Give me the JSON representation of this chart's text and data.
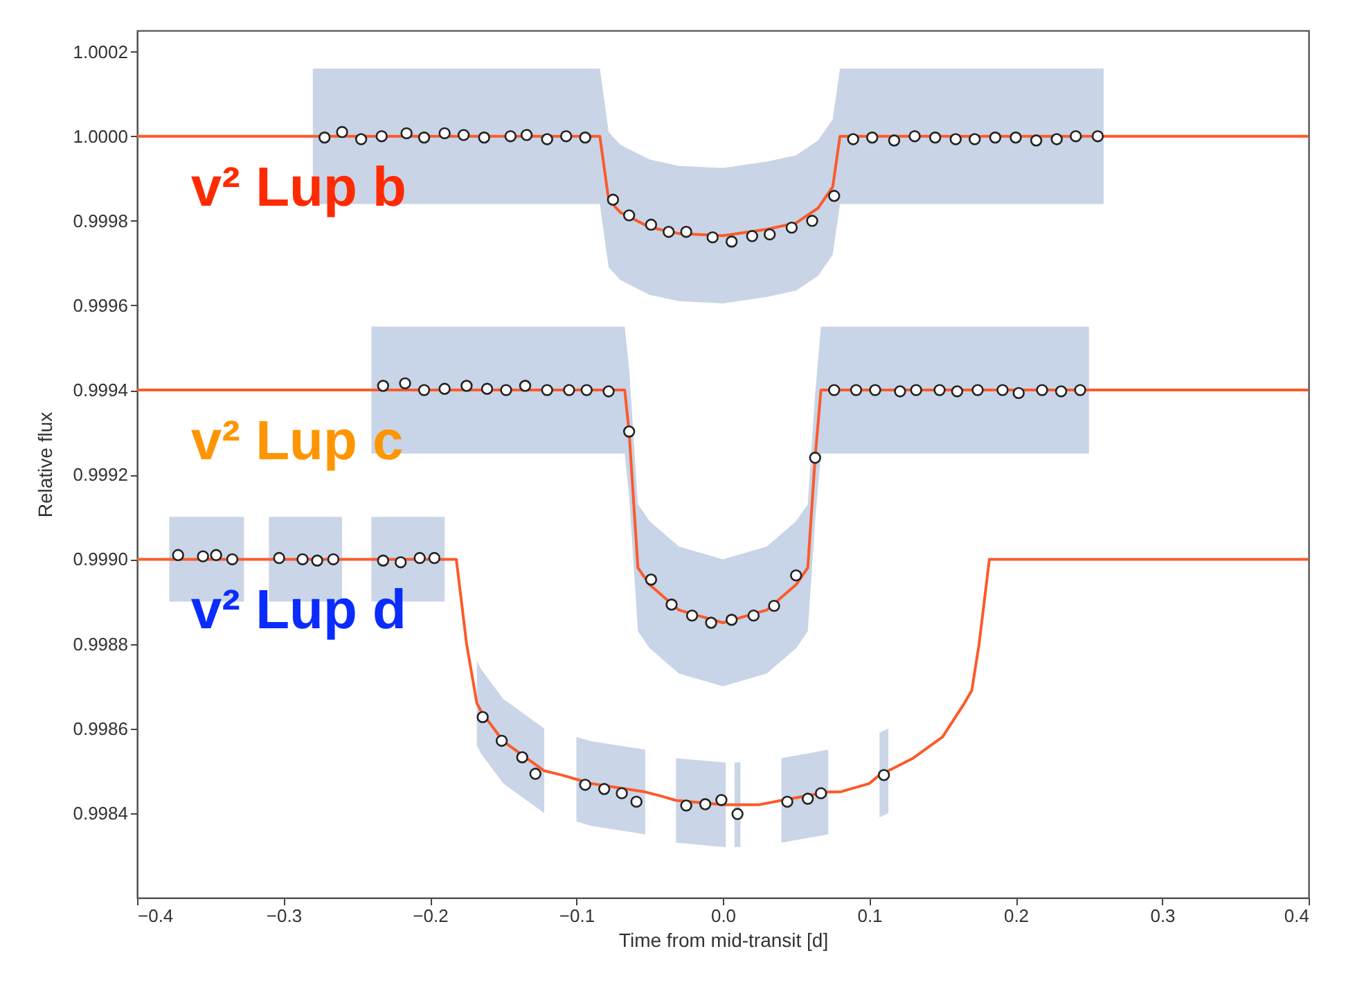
{
  "chart_data": {
    "type": "line",
    "xlabel": "Time from mid-transit [d]",
    "ylabel": "Relative flux",
    "xlim": [
      -0.4,
      0.4
    ],
    "xticks": [
      {
        "value": -0.4,
        "label": "−0.4"
      },
      {
        "value": -0.3,
        "label": "−0.3"
      },
      {
        "value": -0.2,
        "label": "−0.2"
      },
      {
        "value": -0.1,
        "label": "−0.1"
      },
      {
        "value": 0,
        "label": "0.0"
      },
      0.1,
      0.2,
      0.3,
      0.4
    ],
    "ylim": [
      0.9982,
      1.00025
    ],
    "yticks": [
      0.9984,
      0.9986,
      0.9988,
      {
        "value": 0.999,
        "label": "0.9990"
      },
      0.9992,
      0.9994,
      0.9996,
      0.9998,
      {
        "value": 1.0,
        "label": "1.0000"
      },
      1.0002
    ],
    "annotations": [
      "v² Lup b",
      "v² Lup c",
      "v² Lup d"
    ],
    "series": [
      {
        "color": "#fc5a2a",
        "x": [
          -0.4,
          -0.28,
          -0.084,
          -0.078,
          -0.07,
          -0.05,
          -0.03,
          0,
          0.03,
          0.05,
          0.065,
          0.075,
          0.08,
          0.26,
          0.4
        ],
        "values": [
          1.0,
          1.0,
          1.0,
          0.99985,
          0.99982,
          0.999785,
          0.99977,
          0.999765,
          0.99978,
          0.999795,
          0.99983,
          0.99988,
          1.0,
          1.0,
          1.0
        ],
        "lower": [
          null,
          0.99984,
          0.99984,
          0.99969,
          0.99966,
          0.999625,
          0.99961,
          0.999605,
          0.99962,
          0.999635,
          0.99967,
          0.99972,
          0.99984,
          0.99984,
          null
        ],
        "upper": [
          null,
          1.00016,
          1.00016,
          1.00001,
          0.99998,
          0.999945,
          0.99993,
          0.999925,
          0.99994,
          0.999955,
          0.99999,
          1.00004,
          1.00016,
          1.00016,
          null
        ]
      },
      {
        "color": "#fc5a2a",
        "x": [
          -0.4,
          -0.24,
          -0.067,
          -0.064,
          -0.058,
          -0.05,
          -0.03,
          0,
          0.03,
          0.05,
          0.058,
          0.063,
          0.067,
          0.25,
          0.4
        ],
        "values": [
          0.9994,
          0.9994,
          0.9994,
          0.9993,
          0.99898,
          0.99894,
          0.99888,
          0.99885,
          0.99888,
          0.99894,
          0.99898,
          0.99924,
          0.9994,
          0.9994,
          0.9994
        ],
        "lower": [
          null,
          0.99925,
          0.99925,
          0.99915,
          0.99883,
          0.99879,
          0.99873,
          0.9987,
          0.99873,
          0.99879,
          0.99883,
          0.99909,
          0.99925,
          0.99925,
          null
        ],
        "upper": [
          null,
          0.99955,
          0.99955,
          0.99945,
          0.99913,
          0.99909,
          0.99903,
          0.999,
          0.99903,
          0.99909,
          0.99913,
          0.99939,
          0.99955,
          0.99955,
          null
        ]
      },
      {
        "color": "#fc5a2a",
        "x": [
          -0.4,
          -0.378,
          -0.327,
          -0.318,
          -0.31,
          -0.26,
          -0.25,
          -0.24,
          -0.19,
          -0.182,
          -0.175,
          -0.168,
          -0.165,
          -0.15,
          -0.122,
          -0.11,
          -0.1,
          -0.09,
          -0.053,
          -0.042,
          -0.032,
          0,
          0.002,
          0.005,
          0.008,
          0.012,
          0.025,
          0.04,
          0.072,
          0.08,
          0.1,
          0.107,
          0.113,
          0.13,
          0.15,
          0.165,
          0.17,
          0.175,
          0.182,
          0.4
        ],
        "values": [
          0.999,
          0.999,
          0.999,
          0.999,
          0.999,
          0.999,
          0.999,
          0.999,
          0.999,
          0.999,
          0.9988,
          0.99866,
          0.99864,
          0.99857,
          0.9985,
          0.99849,
          0.99848,
          0.99847,
          0.99845,
          0.99844,
          0.99843,
          0.99842,
          0.99842,
          0.99842,
          0.99842,
          0.99842,
          0.99842,
          0.99843,
          0.99845,
          0.99845,
          0.99847,
          0.99849,
          0.9985,
          0.99853,
          0.99858,
          0.99866,
          0.99869,
          0.9988,
          0.999,
          0.999
        ],
        "lower": [
          null,
          0.9989,
          0.9989,
          null,
          0.9989,
          0.9989,
          null,
          0.9989,
          0.9989,
          null,
          null,
          0.99856,
          0.99854,
          0.99847,
          0.9984,
          null,
          0.99838,
          0.99837,
          0.99835,
          null,
          0.99833,
          0.99832,
          0.99832,
          null,
          0.99832,
          0.99832,
          null,
          0.99833,
          0.99835,
          null,
          null,
          0.99839,
          0.9984,
          null,
          null,
          null,
          null,
          null,
          null,
          null
        ],
        "upper": [
          null,
          0.9991,
          0.9991,
          null,
          0.9991,
          0.9991,
          null,
          0.9991,
          0.9991,
          null,
          null,
          0.99876,
          0.99874,
          0.99867,
          0.9986,
          null,
          0.99858,
          0.99857,
          0.99855,
          null,
          0.99853,
          0.99852,
          0.99852,
          null,
          0.99852,
          0.99852,
          null,
          0.99853,
          0.99855,
          null,
          null,
          0.99859,
          0.9986,
          null,
          null,
          null,
          null,
          null,
          null,
          null
        ]
      },
      {
        "type": "scatter",
        "color": "#ffffff",
        "marker": "circle",
        "x": [
          -0.272,
          -0.26,
          -0.247,
          -0.233,
          -0.216,
          -0.204,
          -0.19,
          -0.177,
          -0.163,
          -0.145,
          -0.134,
          -0.12,
          -0.107,
          -0.094,
          -0.075,
          -0.064,
          -0.049,
          -0.037,
          -0.025,
          -0.007,
          0.006,
          0.02,
          0.032,
          0.047,
          0.061,
          0.076,
          0.089,
          0.102,
          0.117,
          0.131,
          0.145,
          0.159,
          0.172,
          0.186,
          0.2,
          0.214,
          0.228,
          0.241,
          0.256
        ],
        "values": [
          0.999997,
          1.00001,
          0.999993,
          1.0,
          1.000007,
          0.999997,
          1.000007,
          1.000003,
          0.999997,
          1.0,
          1.000003,
          0.999993,
          1.0,
          0.999997,
          0.99985,
          0.999813,
          0.999791,
          0.999774,
          0.999774,
          0.999761,
          0.999751,
          0.999764,
          0.999768,
          0.999784,
          0.9998,
          0.999859,
          0.999993,
          0.999997,
          0.99999,
          1.0,
          0.999997,
          0.999993,
          0.999993,
          0.999997,
          0.999997,
          0.99999,
          0.999993,
          1.0,
          1.0
        ]
      },
      {
        "type": "scatter",
        "color": "#ffffff",
        "marker": "circle",
        "x": [
          -0.232,
          -0.217,
          -0.204,
          -0.19,
          -0.175,
          -0.161,
          -0.148,
          -0.135,
          -0.12,
          -0.105,
          -0.093,
          -0.078,
          -0.064,
          -0.049,
          -0.035,
          -0.021,
          -0.008,
          0.006,
          0.021,
          0.035,
          0.05,
          0.063,
          0.076,
          0.091,
          0.104,
          0.121,
          0.132,
          0.148,
          0.16,
          0.174,
          0.191,
          0.202,
          0.218,
          0.231,
          0.244
        ],
        "values": [
          0.99941,
          0.999416,
          0.9994,
          0.999403,
          0.99941,
          0.999403,
          0.9994,
          0.99941,
          0.9994,
          0.9994,
          0.9994,
          0.999397,
          0.999302,
          0.998952,
          0.998893,
          0.998867,
          0.99885,
          0.998857,
          0.998867,
          0.99889,
          0.998962,
          0.99924,
          0.9994,
          0.9994,
          0.9994,
          0.999397,
          0.9994,
          0.9994,
          0.999397,
          0.9994,
          0.9994,
          0.999393,
          0.9994,
          0.999397,
          0.9994
        ]
      },
      {
        "type": "scatter",
        "color": "#ffffff",
        "marker": "circle",
        "x": [
          -0.372,
          -0.355,
          -0.346,
          -0.335,
          -0.303,
          -0.287,
          -0.277,
          -0.266,
          -0.232,
          -0.22,
          -0.207,
          -0.197,
          -0.164,
          -0.151,
          -0.137,
          -0.128,
          -0.094,
          -0.081,
          -0.069,
          -0.059,
          -0.025,
          -0.012,
          -0.001,
          0.01,
          0.044,
          0.058,
          0.067,
          0.11
        ],
        "values": [
          0.99901,
          0.999007,
          0.99901,
          0.999,
          0.999003,
          0.999,
          0.998997,
          0.999,
          0.998997,
          0.998993,
          0.999003,
          0.999003,
          0.998627,
          0.998571,
          0.998532,
          0.998493,
          0.998467,
          0.998457,
          0.998447,
          0.998427,
          0.998418,
          0.998421,
          0.998431,
          0.998398,
          0.998427,
          0.998434,
          0.998447,
          0.99849
        ]
      }
    ]
  }
}
